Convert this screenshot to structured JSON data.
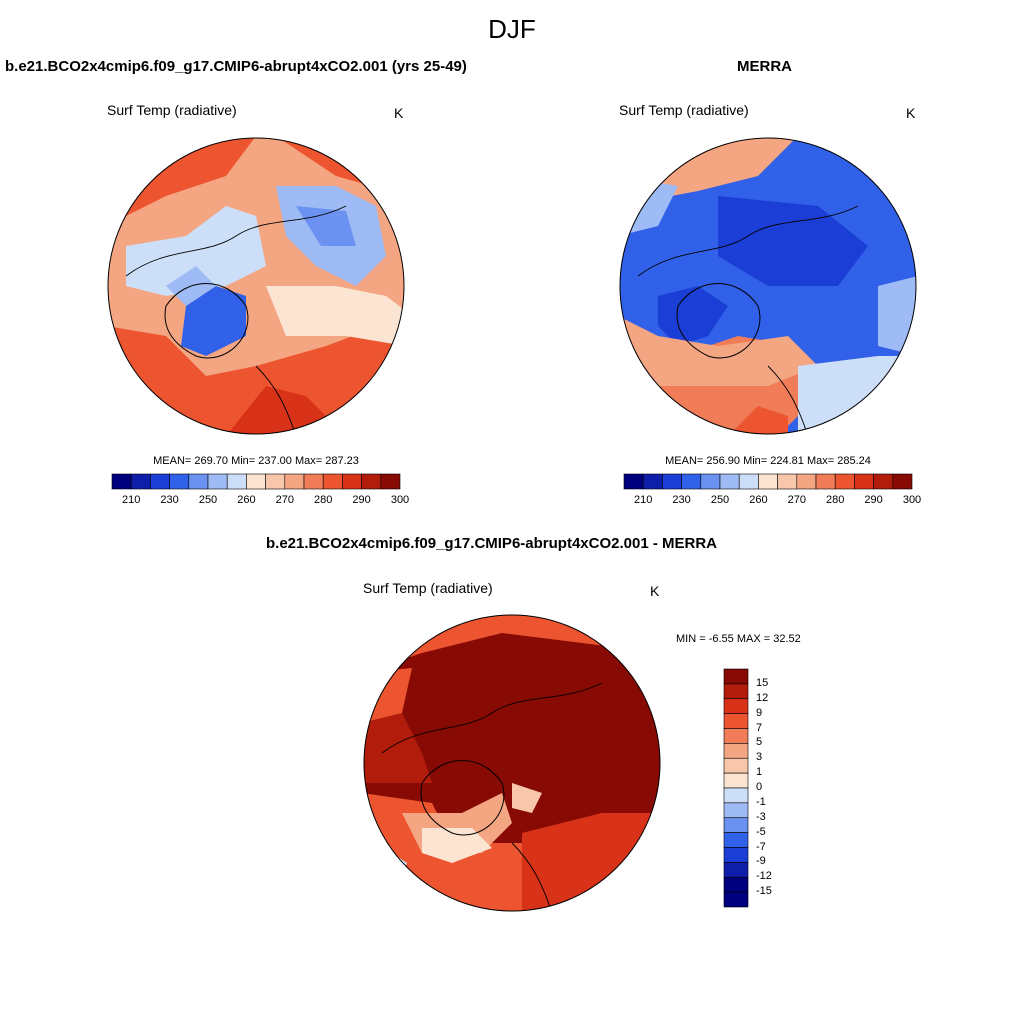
{
  "figure": {
    "title": "DJF"
  },
  "panels": {
    "model": {
      "title": "b.e21.BCO2x4cmip6.f09_g17.CMIP6-abrupt4xCO2.001 (yrs 25-49)",
      "variable": "Surf Temp (radiative)",
      "units": "K",
      "stats": "MEAN= 269.70  Min= 237.00  Max= 287.23",
      "colorbar_ticks": [
        "210",
        "230",
        "250",
        "260",
        "270",
        "280",
        "290",
        "300"
      ],
      "colorbar_colors": [
        "#00007f",
        "#0f1ea8",
        "#1b3fd6",
        "#3061e8",
        "#6b92f0",
        "#9fbbf5",
        "#cddff8",
        "#fbe4d2",
        "#f7c6ab",
        "#f4a683",
        "#f07d58",
        "#ec552f",
        "#d83218",
        "#b11c0b",
        "#880a04"
      ]
    },
    "obs": {
      "title": "MERRA",
      "variable": "Surf Temp (radiative)",
      "units": "K",
      "stats": "MEAN= 256.90  Min= 224.81  Max= 285.24",
      "colorbar_ticks": [
        "210",
        "230",
        "250",
        "260",
        "270",
        "280",
        "290",
        "300"
      ],
      "colorbar_colors": [
        "#00007f",
        "#0f1ea8",
        "#1b3fd6",
        "#3061e8",
        "#6b92f0",
        "#9fbbf5",
        "#cddff8",
        "#fbe4d2",
        "#f7c6ab",
        "#f4a683",
        "#f07d58",
        "#ec552f",
        "#d83218",
        "#b11c0b",
        "#880a04"
      ]
    },
    "diff": {
      "title": "b.e21.BCO2x4cmip6.f09_g17.CMIP6-abrupt4xCO2.001 - MERRA",
      "variable": "Surf Temp (radiative)",
      "units": "K",
      "stats": "MIN =  -6.55 MAX =  32.52",
      "colorbar_ticks": [
        "15",
        "12",
        "9",
        "7",
        "5",
        "3",
        "1",
        "0",
        "-1",
        "-3",
        "-5",
        "-7",
        "-9",
        "-12",
        "-15"
      ],
      "colorbar_colors": [
        "#880a04",
        "#b11c0b",
        "#d83218",
        "#ec552f",
        "#f07d58",
        "#f4a683",
        "#f7c6ab",
        "#fbe4d2",
        "#cddff8",
        "#9fbbf5",
        "#6b92f0",
        "#3061e8",
        "#1b3fd6",
        "#0f1ea8",
        "#00007f"
      ]
    }
  }
}
